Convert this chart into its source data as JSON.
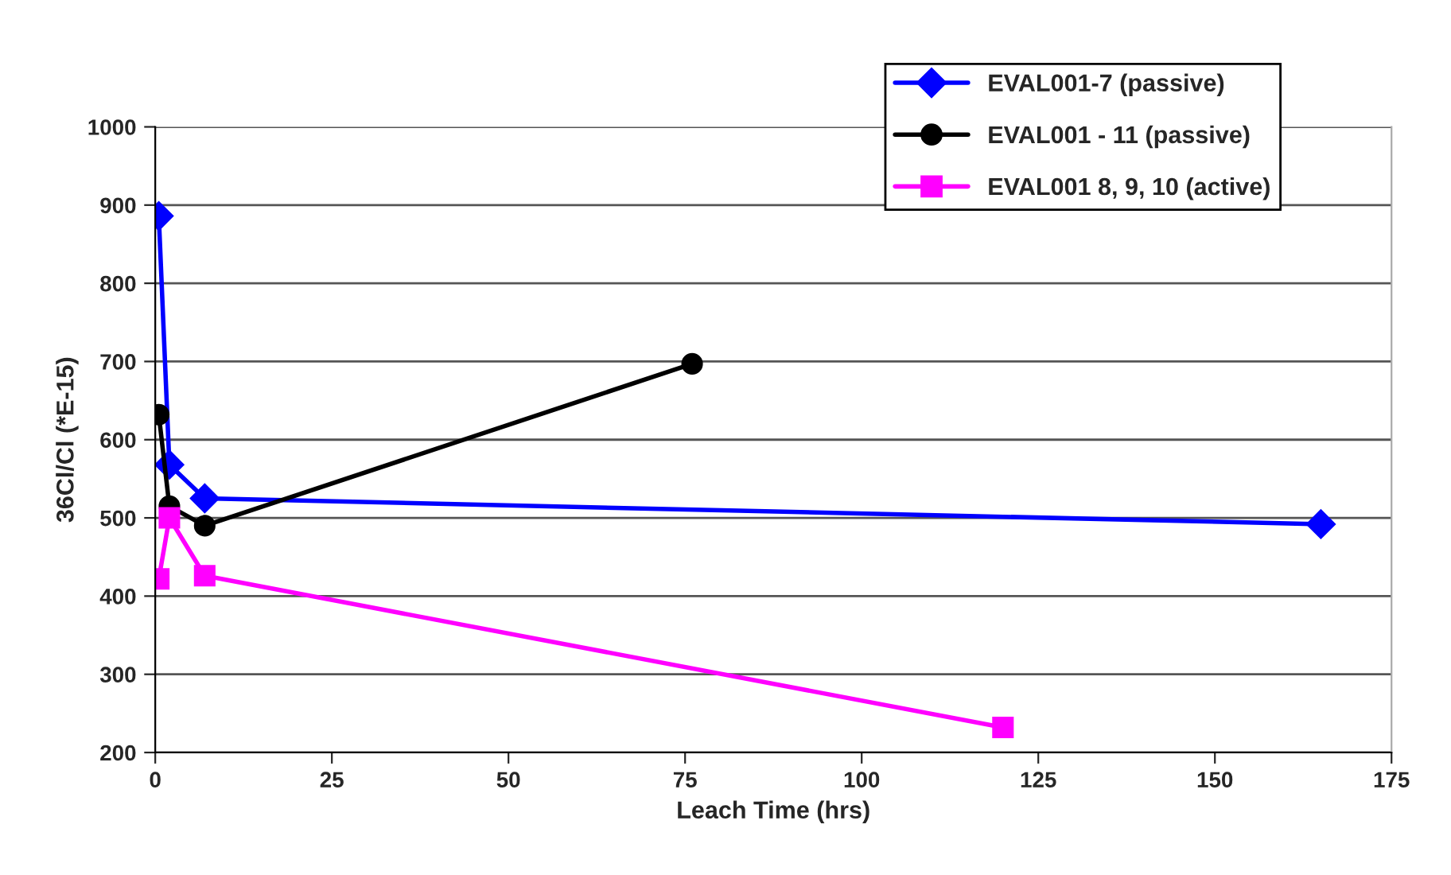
{
  "chart_data": {
    "type": "line",
    "xlabel": "Leach Time (hrs)",
    "ylabel": "36Cl/Cl (*E-15)",
    "xlim": [
      0,
      175
    ],
    "xticks": [
      0,
      25,
      50,
      75,
      100,
      125,
      150,
      175
    ],
    "ylim": [
      200,
      1000
    ],
    "yticks": [
      200,
      300,
      400,
      500,
      600,
      700,
      800,
      900,
      1000
    ],
    "grid": "y",
    "legend": "top right",
    "line_style": "solid",
    "series": [
      {
        "name": "EVAL001-7 (passive)",
        "color": "#0000ff",
        "marker": "diamond",
        "x": [
          0.5,
          2,
          7,
          165
        ],
        "values": [
          886,
          568,
          525,
          492
        ]
      },
      {
        "name": "EVAL001 - 11 (passive)",
        "color": "#000000",
        "marker": "circle",
        "x": [
          0.5,
          2,
          7,
          76
        ],
        "values": [
          632,
          515,
          490,
          697
        ]
      },
      {
        "name": "EVAL001 8, 9, 10 (active)",
        "color": "#ff00ff",
        "marker": "square",
        "x": [
          0.5,
          2,
          7,
          120
        ],
        "values": [
          422,
          500,
          426,
          232
        ]
      }
    ]
  }
}
